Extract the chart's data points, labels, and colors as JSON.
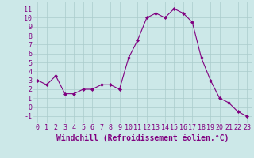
{
  "x": [
    0,
    1,
    2,
    3,
    4,
    5,
    6,
    7,
    8,
    9,
    10,
    11,
    12,
    13,
    14,
    15,
    16,
    17,
    18,
    19,
    20,
    21,
    22,
    23
  ],
  "y": [
    3,
    2.5,
    3.5,
    1.5,
    1.5,
    2,
    2,
    2.5,
    2.5,
    2,
    5.5,
    7.5,
    10,
    10.5,
    10,
    11,
    10.5,
    9.5,
    5.5,
    3,
    1,
    0.5,
    -0.5,
    -1
  ],
  "line_color": "#800080",
  "marker": "D",
  "marker_size": 2,
  "bg_color": "#cce8e8",
  "grid_color": "#aacccc",
  "xlabel": "Windchill (Refroidissement éolien,°C)",
  "xlabel_fontsize": 7,
  "xtick_labels": [
    "0",
    "1",
    "2",
    "3",
    "4",
    "5",
    "6",
    "7",
    "8",
    "9",
    "10",
    "11",
    "12",
    "13",
    "14",
    "15",
    "16",
    "17",
    "18",
    "19",
    "20",
    "21",
    "22",
    "23"
  ],
  "ytick_vals": [
    -1,
    0,
    1,
    2,
    3,
    4,
    5,
    6,
    7,
    8,
    9,
    10,
    11
  ],
  "ylim": [
    -1.8,
    11.8
  ],
  "xlim": [
    -0.5,
    23.5
  ],
  "tick_fontsize": 6
}
